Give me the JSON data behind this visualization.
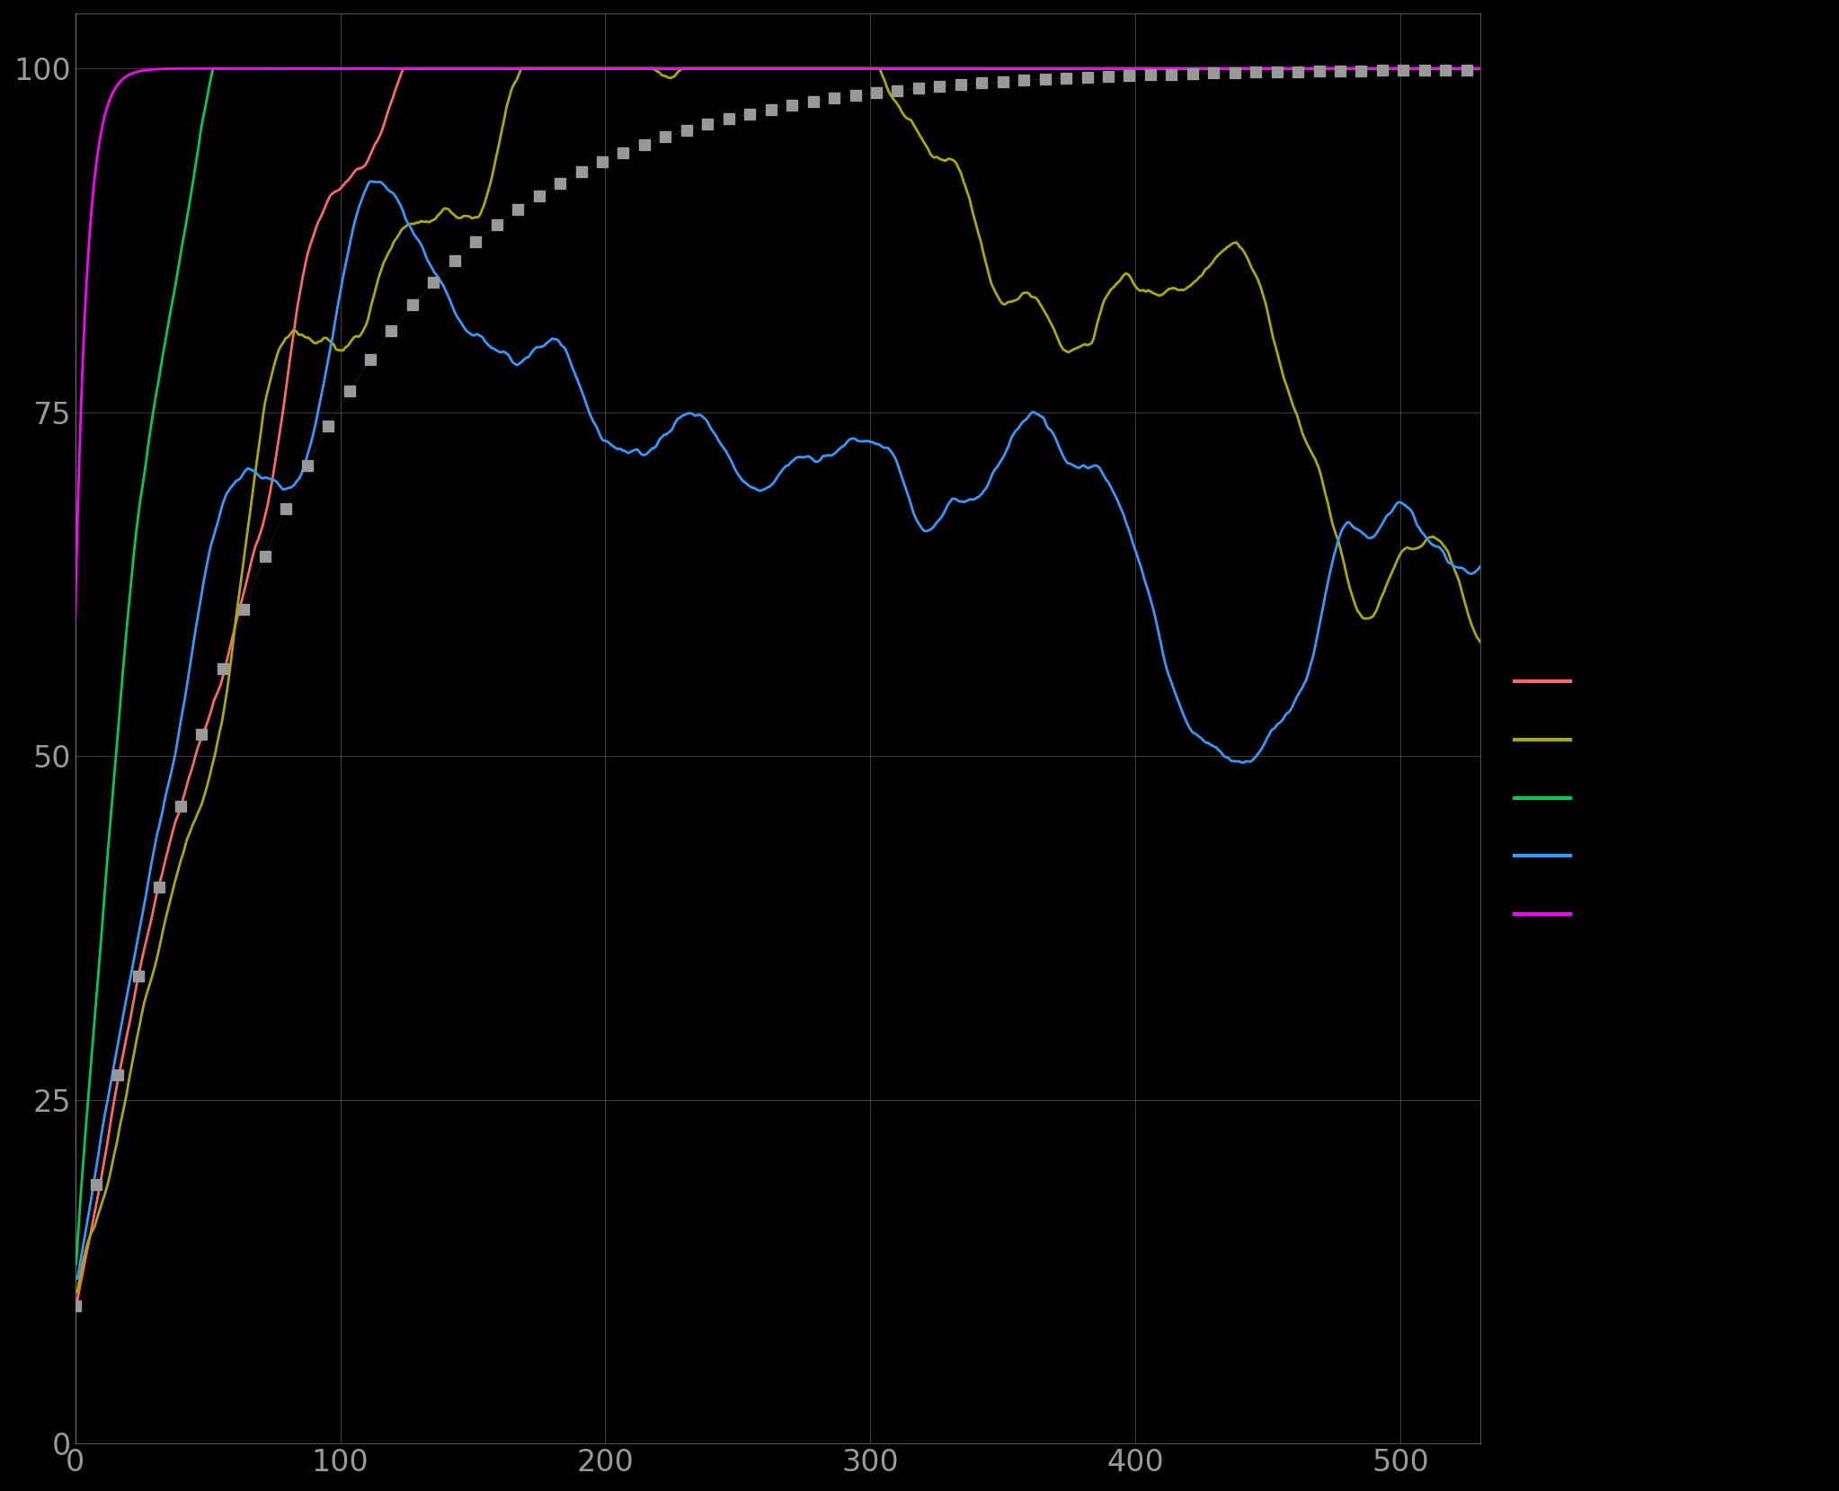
{
  "background_color": "#000000",
  "grid_color": "#cccccc",
  "text_color": "#999999",
  "xlim": [
    0,
    530
  ],
  "ylim": [
    0,
    104
  ],
  "yticks": [
    0,
    25,
    50,
    75,
    100
  ],
  "xticks": [
    0,
    100,
    200,
    300,
    400,
    500
  ],
  "legend_colors": [
    "#ff6666",
    "#aaaa00",
    "#00cc55",
    "#3399ff",
    "#ff00ff"
  ],
  "dashed_color": "#999999",
  "dashed_linewidth": 3.5,
  "line_linewidth": 2.0,
  "curve_params": {
    "magenta": {
      "alpha": 0.22,
      "x0": 2.0,
      "ymin": 60,
      "ymax": 100
    },
    "green": {
      "alpha": 0.035,
      "x0": 0.0,
      "ymin": 13,
      "ymax": 100
    },
    "blue": {
      "alpha": 0.018,
      "x0": 0.0,
      "ymin": 12,
      "ymax": 100
    },
    "yellow": {
      "alpha": 0.015,
      "x0": 0.0,
      "ymin": 11,
      "ymax": 100
    },
    "red": {
      "alpha": 0.01,
      "x0": 0.0,
      "ymin": 10,
      "ymax": 100
    },
    "dashed": {
      "alpha": 0.013,
      "x0": 0.0,
      "ymin": 10,
      "ymax": 100
    }
  }
}
